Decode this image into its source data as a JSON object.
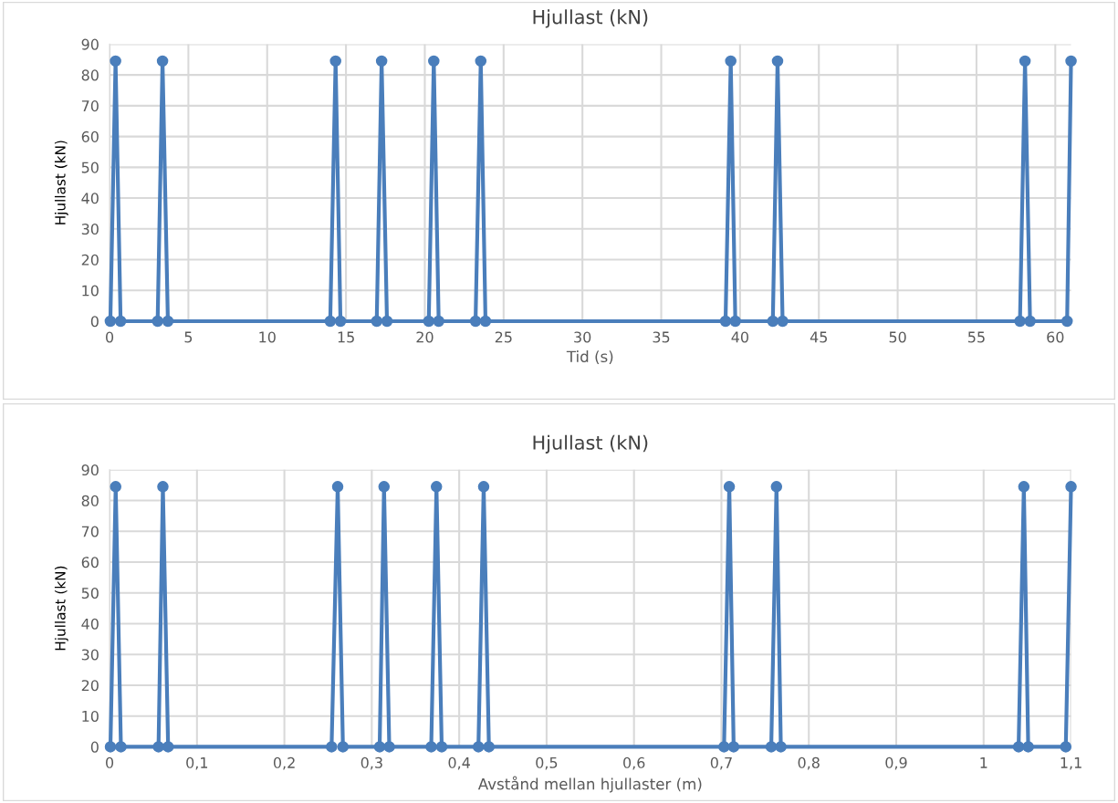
{
  "chart_data": [
    {
      "type": "line",
      "title": "Hjullast (kN)",
      "xlabel": "Tid (s)",
      "ylabel": "Hjullast (kN)",
      "marker": "circle",
      "line_style": "solid",
      "grid": true,
      "series": [
        {
          "color": "#4a7ebb",
          "x": [
            0.05,
            0.38,
            0.7,
            3.05,
            3.36,
            3.7,
            14.0,
            14.34,
            14.65,
            16.95,
            17.26,
            17.6,
            20.25,
            20.57,
            20.88,
            23.22,
            23.55,
            23.85,
            39.08,
            39.41,
            39.7,
            42.08,
            42.38,
            42.7,
            57.76,
            58.08,
            58.4,
            60.75,
            61.0
          ],
          "values": [
            0,
            84.5,
            0,
            0,
            84.5,
            0,
            0,
            84.5,
            0,
            0,
            84.5,
            0,
            0,
            84.5,
            0,
            0,
            84.5,
            0,
            0,
            84.5,
            0,
            0,
            84.5,
            0,
            0,
            84.5,
            0,
            0,
            84.5
          ]
        }
      ],
      "xlim": [
        0,
        61
      ],
      "xticks": [
        0,
        5,
        10,
        15,
        20,
        25,
        30,
        35,
        40,
        45,
        50,
        55,
        60
      ],
      "ylim": [
        0,
        90
      ],
      "yticks": [
        0,
        10,
        20,
        30,
        40,
        50,
        60,
        70,
        80,
        90
      ]
    },
    {
      "type": "line",
      "title": "Hjullast (kN)",
      "xlabel": "Avstånd mellan hjullaster (m)",
      "ylabel": "Hjullast (kN)",
      "marker": "circle",
      "line_style": "solid",
      "grid": true,
      "series": [
        {
          "color": "#4a7ebb",
          "x": [
            0.001,
            0.007,
            0.013,
            0.056,
            0.061,
            0.067,
            0.254,
            0.261,
            0.267,
            0.309,
            0.314,
            0.32,
            0.368,
            0.374,
            0.38,
            0.422,
            0.428,
            0.434,
            0.703,
            0.709,
            0.714,
            0.757,
            0.763,
            0.768,
            1.04,
            1.046,
            1.051,
            1.094,
            1.1
          ],
          "values": [
            0,
            84.5,
            0,
            0,
            84.5,
            0,
            0,
            84.5,
            0,
            0,
            84.5,
            0,
            0,
            84.5,
            0,
            0,
            84.5,
            0,
            0,
            84.5,
            0,
            0,
            84.5,
            0,
            0,
            84.5,
            0,
            0,
            84.5
          ]
        }
      ],
      "xlim": [
        0,
        1.1
      ],
      "xticks": [
        0,
        {
          "value": 0.1,
          "label": "0,1"
        },
        {
          "value": 0.2,
          "label": "0,2"
        },
        {
          "value": 0.3,
          "label": "0,3"
        },
        {
          "value": 0.4,
          "label": "0,4"
        },
        {
          "value": 0.5,
          "label": "0,5"
        },
        {
          "value": 0.6,
          "label": "0,6"
        },
        {
          "value": 0.7,
          "label": "0,7"
        },
        {
          "value": 0.8,
          "label": "0,8"
        },
        {
          "value": 0.9,
          "label": "0,9"
        },
        1,
        {
          "value": 1.1,
          "label": "1,1"
        }
      ],
      "ylim": [
        0,
        90
      ],
      "yticks": [
        0,
        10,
        20,
        30,
        40,
        50,
        60,
        70,
        80,
        90
      ]
    }
  ]
}
